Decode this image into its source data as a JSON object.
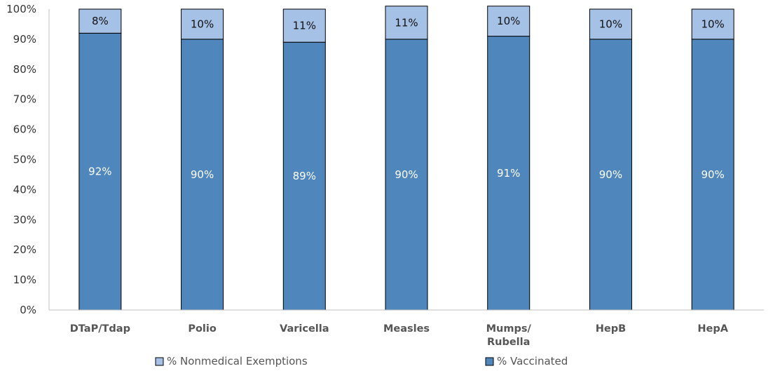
{
  "chart_data": {
    "type": "bar",
    "stacked": true,
    "categories": [
      "DTaP/Tdap",
      "Polio",
      "Varicella",
      "Measles",
      "Mumps/\nRubella",
      "HepB",
      "HepA"
    ],
    "series": [
      {
        "name": "% Vaccinated",
        "values": [
          92,
          90,
          89,
          90,
          91,
          90,
          90
        ],
        "color": "#4f86bb",
        "label_color": "#ffffff"
      },
      {
        "name": "% Nonmedical Exemptions",
        "values": [
          8,
          10,
          11,
          11,
          10,
          10,
          10
        ],
        "color": "#a6c1e6",
        "label_color": "#111111"
      }
    ],
    "value_format": "{v}%",
    "ylim": [
      0,
      100
    ],
    "yticks": [
      0,
      10,
      20,
      30,
      40,
      50,
      60,
      70,
      80,
      90,
      100
    ],
    "ytick_format": "{v}%",
    "legend": {
      "position": "bottom",
      "order": [
        "% Nonmedical Exemptions",
        "% Vaccinated"
      ]
    },
    "grid": false,
    "title": "",
    "xlabel": "",
    "ylabel": ""
  }
}
